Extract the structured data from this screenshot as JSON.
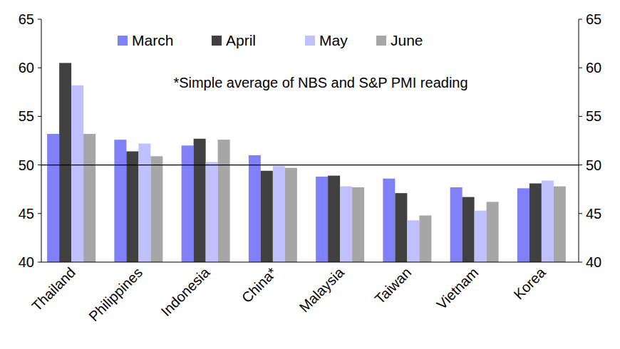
{
  "chart_data": {
    "type": "bar",
    "annotation": "*Simple average of NBS and S&P PMI reading",
    "categories": [
      "Thailand",
      "Philippines",
      "Indonesia",
      "China*",
      "Malaysia",
      "Taiwan",
      "Vietnam",
      "Korea"
    ],
    "series": [
      {
        "name": "March",
        "color": "#8080f8",
        "values": [
          53.2,
          52.6,
          52.0,
          51.0,
          48.8,
          48.6,
          47.7,
          47.6
        ]
      },
      {
        "name": "April",
        "color": "#404040",
        "values": [
          60.5,
          51.4,
          52.7,
          49.4,
          48.9,
          47.1,
          46.7,
          48.1
        ]
      },
      {
        "name": "May",
        "color": "#c0c0ff",
        "values": [
          58.2,
          52.2,
          50.3,
          49.9,
          47.8,
          44.3,
          45.3,
          48.4
        ]
      },
      {
        "name": "June",
        "color": "#a6a6a6",
        "values": [
          53.2,
          50.9,
          52.6,
          49.7,
          47.7,
          44.8,
          46.2,
          47.8
        ]
      }
    ],
    "hline": 50,
    "ylim": [
      40,
      65
    ],
    "yticks": [
      40,
      45,
      50,
      55,
      60,
      65
    ],
    "grid": false,
    "legend": "top"
  }
}
